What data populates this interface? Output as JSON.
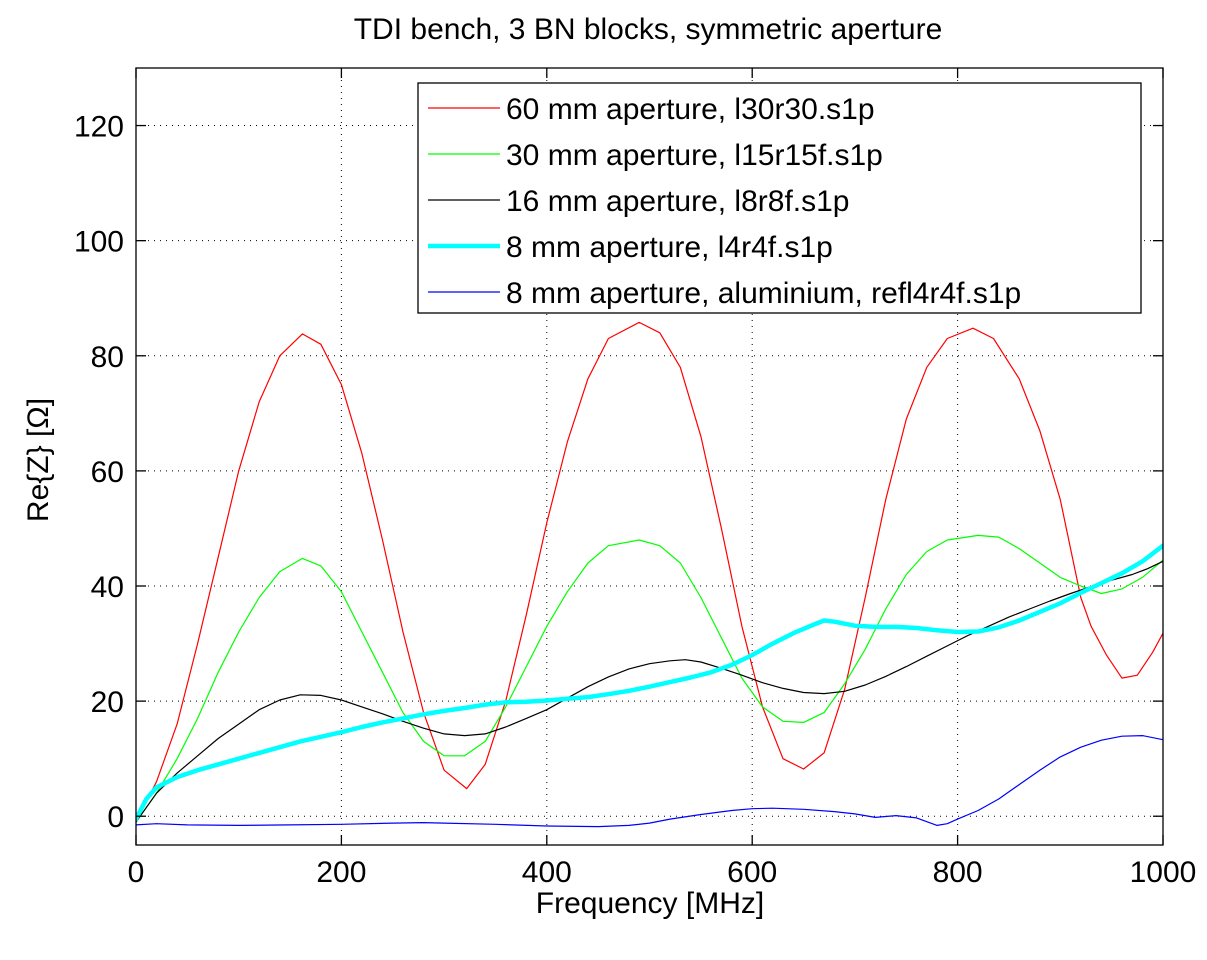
{
  "chart_data": {
    "type": "line",
    "title": "TDI bench, 3 BN blocks, symmetric aperture",
    "xlabel": "Frequency [MHz]",
    "ylabel": "Re{Z} [Ω]",
    "xlim": [
      0,
      1000
    ],
    "ylim": [
      -5,
      130
    ],
    "xticks": [
      0,
      200,
      400,
      600,
      800,
      1000
    ],
    "yticks": [
      0,
      20,
      40,
      60,
      80,
      100,
      120
    ],
    "xtick_labels": [
      "0",
      "200",
      "400",
      "600",
      "800",
      "1000"
    ],
    "ytick_labels": [
      "0",
      "20",
      "40",
      "60",
      "80",
      "100",
      "120"
    ],
    "grid": true,
    "legend_position": "top-right",
    "series": [
      {
        "name": "60 mm aperture, l30r30.s1p",
        "color": "#ff0000",
        "width": 1.2,
        "points": [
          [
            0,
            -1
          ],
          [
            20,
            6
          ],
          [
            40,
            16
          ],
          [
            60,
            30
          ],
          [
            80,
            45
          ],
          [
            100,
            60
          ],
          [
            120,
            72
          ],
          [
            140,
            80
          ],
          [
            162,
            83.8
          ],
          [
            180,
            82
          ],
          [
            200,
            75
          ],
          [
            220,
            63
          ],
          [
            240,
            48
          ],
          [
            260,
            32
          ],
          [
            280,
            18
          ],
          [
            300,
            8
          ],
          [
            322,
            4.8
          ],
          [
            340,
            9
          ],
          [
            360,
            20
          ],
          [
            380,
            35
          ],
          [
            400,
            51
          ],
          [
            420,
            65
          ],
          [
            440,
            76
          ],
          [
            460,
            83
          ],
          [
            490,
            85.8
          ],
          [
            510,
            84
          ],
          [
            530,
            78
          ],
          [
            550,
            66
          ],
          [
            570,
            50
          ],
          [
            590,
            33
          ],
          [
            610,
            19
          ],
          [
            630,
            10
          ],
          [
            650,
            8.2
          ],
          [
            670,
            11
          ],
          [
            690,
            22
          ],
          [
            710,
            38
          ],
          [
            730,
            55
          ],
          [
            750,
            69
          ],
          [
            770,
            78
          ],
          [
            790,
            83
          ],
          [
            815,
            84.8
          ],
          [
            835,
            83
          ],
          [
            860,
            76
          ],
          [
            880,
            67
          ],
          [
            900,
            55
          ],
          [
            920,
            38
          ],
          [
            930,
            33
          ],
          [
            945,
            28
          ],
          [
            960,
            24
          ],
          [
            975,
            24.5
          ],
          [
            990,
            28.5
          ],
          [
            1000,
            31.8
          ]
        ]
      },
      {
        "name": "30 mm aperture, l15r15f.s1p",
        "color": "#00ff00",
        "width": 1.2,
        "points": [
          [
            0,
            -1
          ],
          [
            20,
            4
          ],
          [
            40,
            10
          ],
          [
            60,
            17
          ],
          [
            80,
            25
          ],
          [
            100,
            32
          ],
          [
            120,
            38
          ],
          [
            140,
            42.5
          ],
          [
            162,
            44.8
          ],
          [
            180,
            43.5
          ],
          [
            200,
            39
          ],
          [
            220,
            32
          ],
          [
            240,
            25
          ],
          [
            260,
            18
          ],
          [
            280,
            13
          ],
          [
            300,
            10.5
          ],
          [
            320,
            10.5
          ],
          [
            340,
            13
          ],
          [
            360,
            19
          ],
          [
            380,
            26
          ],
          [
            400,
            33
          ],
          [
            420,
            39
          ],
          [
            440,
            44
          ],
          [
            460,
            47
          ],
          [
            490,
            48
          ],
          [
            510,
            47
          ],
          [
            530,
            44
          ],
          [
            550,
            38
          ],
          [
            570,
            31
          ],
          [
            590,
            24
          ],
          [
            610,
            19
          ],
          [
            630,
            16.5
          ],
          [
            650,
            16.3
          ],
          [
            670,
            18
          ],
          [
            690,
            23
          ],
          [
            710,
            29
          ],
          [
            730,
            36
          ],
          [
            750,
            42
          ],
          [
            770,
            46
          ],
          [
            790,
            48
          ],
          [
            820,
            48.8
          ],
          [
            840,
            48.5
          ],
          [
            860,
            46.5
          ],
          [
            880,
            44
          ],
          [
            900,
            41.5
          ],
          [
            920,
            40
          ],
          [
            940,
            38.7
          ],
          [
            960,
            39.5
          ],
          [
            980,
            41.5
          ],
          [
            1000,
            44.5
          ]
        ]
      },
      {
        "name": "16 mm aperture, l8r8f.s1p",
        "color": "#000000",
        "width": 1.2,
        "points": [
          [
            0,
            -1
          ],
          [
            20,
            4
          ],
          [
            40,
            7.5
          ],
          [
            60,
            10.5
          ],
          [
            80,
            13.5
          ],
          [
            100,
            16
          ],
          [
            120,
            18.5
          ],
          [
            140,
            20.2
          ],
          [
            160,
            21.1
          ],
          [
            180,
            21
          ],
          [
            200,
            20.2
          ],
          [
            220,
            19
          ],
          [
            240,
            17.8
          ],
          [
            260,
            16.5
          ],
          [
            280,
            15.3
          ],
          [
            300,
            14.3
          ],
          [
            320,
            14
          ],
          [
            340,
            14.3
          ],
          [
            360,
            15.5
          ],
          [
            380,
            17
          ],
          [
            400,
            18.5
          ],
          [
            420,
            20.5
          ],
          [
            440,
            22.5
          ],
          [
            460,
            24.2
          ],
          [
            480,
            25.6
          ],
          [
            500,
            26.5
          ],
          [
            520,
            27
          ],
          [
            535,
            27.2
          ],
          [
            550,
            26.8
          ],
          [
            570,
            25.7
          ],
          [
            590,
            24.5
          ],
          [
            610,
            23.2
          ],
          [
            630,
            22.2
          ],
          [
            650,
            21.5
          ],
          [
            670,
            21.3
          ],
          [
            690,
            21.7
          ],
          [
            710,
            22.8
          ],
          [
            730,
            24.3
          ],
          [
            750,
            26
          ],
          [
            770,
            27.8
          ],
          [
            790,
            29.6
          ],
          [
            810,
            31.4
          ],
          [
            830,
            33
          ],
          [
            850,
            34.6
          ],
          [
            870,
            36
          ],
          [
            890,
            37.4
          ],
          [
            910,
            38.7
          ],
          [
            930,
            39.9
          ],
          [
            950,
            41
          ],
          [
            970,
            42
          ],
          [
            985,
            43
          ],
          [
            1000,
            44.3
          ]
        ]
      },
      {
        "name": "8 mm aperture, l4r4f.s1p",
        "color": "#00ffff",
        "width": 4.5,
        "points": [
          [
            0,
            -0.5
          ],
          [
            10,
            3
          ],
          [
            20,
            5
          ],
          [
            40,
            6.8
          ],
          [
            60,
            8
          ],
          [
            80,
            9
          ],
          [
            100,
            10
          ],
          [
            120,
            11
          ],
          [
            140,
            12
          ],
          [
            160,
            13
          ],
          [
            180,
            13.8
          ],
          [
            200,
            14.6
          ],
          [
            220,
            15.5
          ],
          [
            240,
            16.3
          ],
          [
            260,
            17
          ],
          [
            280,
            17.7
          ],
          [
            300,
            18.3
          ],
          [
            320,
            18.8
          ],
          [
            340,
            19.4
          ],
          [
            360,
            19.8
          ],
          [
            380,
            19.9
          ],
          [
            400,
            20.1
          ],
          [
            420,
            20.4
          ],
          [
            440,
            20.7
          ],
          [
            460,
            21.2
          ],
          [
            480,
            21.8
          ],
          [
            500,
            22.5
          ],
          [
            520,
            23.3
          ],
          [
            540,
            24.1
          ],
          [
            560,
            25
          ],
          [
            580,
            26.3
          ],
          [
            600,
            28
          ],
          [
            620,
            30
          ],
          [
            640,
            31.8
          ],
          [
            660,
            33.3
          ],
          [
            670,
            34
          ],
          [
            680,
            33.8
          ],
          [
            700,
            33.1
          ],
          [
            720,
            32.9
          ],
          [
            740,
            32.9
          ],
          [
            760,
            32.7
          ],
          [
            780,
            32.3
          ],
          [
            800,
            32
          ],
          [
            820,
            32.1
          ],
          [
            840,
            32.8
          ],
          [
            860,
            34
          ],
          [
            880,
            35.5
          ],
          [
            900,
            37
          ],
          [
            920,
            38.8
          ],
          [
            940,
            40.5
          ],
          [
            960,
            42.2
          ],
          [
            980,
            44.3
          ],
          [
            1000,
            47
          ]
        ]
      },
      {
        "name": "8 mm aperture, aluminium, refl4r4f.s1p",
        "color": "#0000ff",
        "width": 1.2,
        "points": [
          [
            0,
            -1.5
          ],
          [
            20,
            -1.3
          ],
          [
            50,
            -1.5
          ],
          [
            100,
            -1.6
          ],
          [
            150,
            -1.5
          ],
          [
            200,
            -1.4
          ],
          [
            250,
            -1.2
          ],
          [
            280,
            -1.1
          ],
          [
            300,
            -1.2
          ],
          [
            350,
            -1.4
          ],
          [
            400,
            -1.7
          ],
          [
            450,
            -1.8
          ],
          [
            480,
            -1.6
          ],
          [
            500,
            -1.2
          ],
          [
            520,
            -0.5
          ],
          [
            550,
            0.3
          ],
          [
            580,
            1
          ],
          [
            600,
            1.3
          ],
          [
            620,
            1.4
          ],
          [
            650,
            1.2
          ],
          [
            680,
            0.8
          ],
          [
            700,
            0.4
          ],
          [
            720,
            -0.2
          ],
          [
            740,
            0.1
          ],
          [
            760,
            -0.3
          ],
          [
            780,
            -1.6
          ],
          [
            790,
            -1.3
          ],
          [
            800,
            -0.5
          ],
          [
            820,
            1
          ],
          [
            840,
            3
          ],
          [
            860,
            5.5
          ],
          [
            880,
            8
          ],
          [
            900,
            10.3
          ],
          [
            920,
            12
          ],
          [
            940,
            13.2
          ],
          [
            960,
            13.9
          ],
          [
            980,
            14
          ],
          [
            1000,
            13.3
          ]
        ]
      }
    ]
  }
}
